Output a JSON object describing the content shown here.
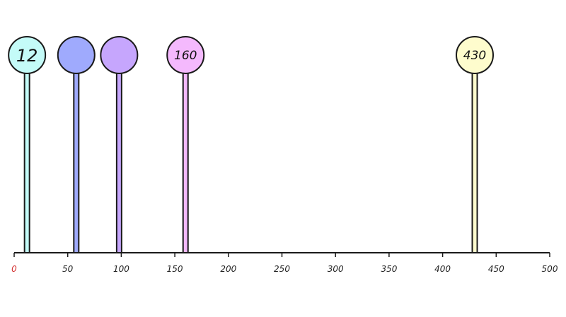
{
  "chart_data": {
    "type": "lollipop",
    "title": "",
    "xlabel": "",
    "ylabel": "",
    "xlim": [
      0,
      500
    ],
    "x_ticks": [
      "0",
      "50",
      "100",
      "150",
      "200",
      "250",
      "300",
      "350",
      "400",
      "450",
      "500"
    ],
    "grid": false,
    "points": [
      {
        "value": 12,
        "label": "12",
        "color": "#c4fbf8"
      },
      {
        "value": 58,
        "label": "",
        "color": "#9faafd"
      },
      {
        "value": 98,
        "label": "",
        "color": "#c6a6fd"
      },
      {
        "value": 160,
        "label": "160",
        "color": "#f4b9fd"
      },
      {
        "value": 430,
        "label": "430",
        "color": "#fefccd"
      }
    ],
    "zero_tick_color": "#d32f2f",
    "stroke_color": "#1a1a1a"
  }
}
